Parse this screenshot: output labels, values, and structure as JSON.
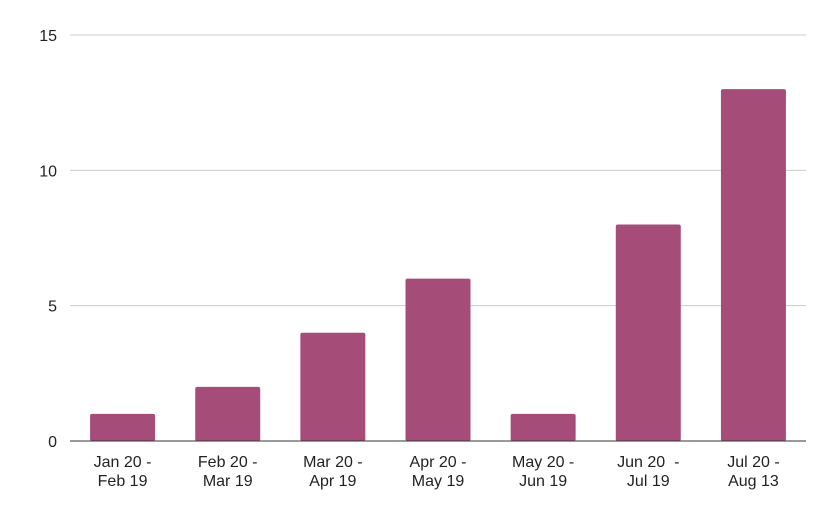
{
  "chart_data": {
    "type": "bar",
    "categories": [
      [
        "Jan 20 -",
        "Feb 19"
      ],
      [
        "Feb 20 -",
        "Mar 19"
      ],
      [
        "Mar 20 -",
        "Apr 19"
      ],
      [
        "Apr 20 -",
        "May 19"
      ],
      [
        "May 20 -",
        "Jun 19"
      ],
      [
        "Jun 20  -",
        "Jul 19"
      ],
      [
        "Jul 20 -",
        "Aug 13"
      ]
    ],
    "values": [
      1,
      2,
      4,
      6,
      1,
      8,
      13
    ],
    "ylim": [
      0,
      15
    ],
    "yticks": [
      0,
      5,
      10,
      15
    ],
    "grid": true,
    "bar_color": "#a54d78",
    "grid_color": "#cccccc",
    "axis_color": "#333333"
  }
}
